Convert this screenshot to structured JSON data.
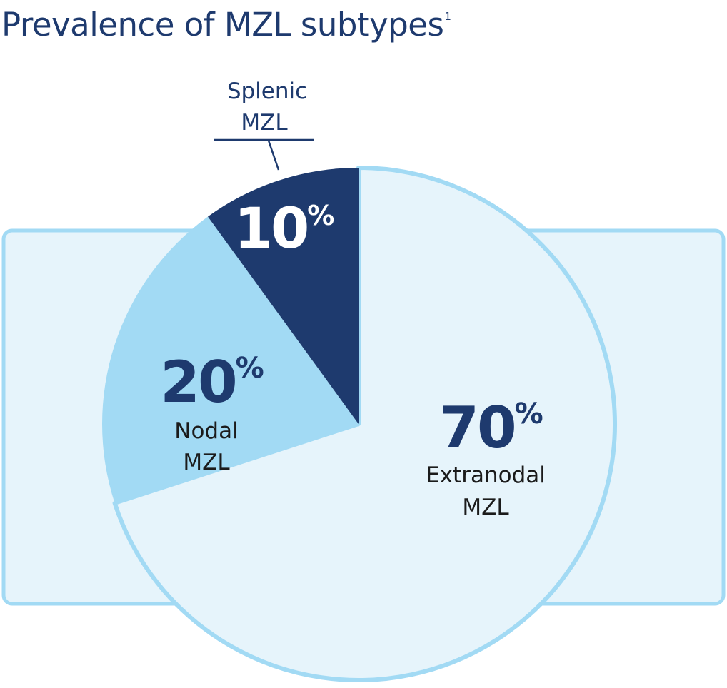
{
  "title": "Prevalence of MZL subtypes",
  "title_ref": "1",
  "colors": {
    "title": "#1e3a6e",
    "backdrop_fill": "#e6f4fb",
    "backdrop_stroke": "#a2daf4",
    "extranodal": "#e6f4fb",
    "nodal": "#a2daf4",
    "splenic": "#1e3a6e"
  },
  "chart_data": {
    "type": "pie",
    "title": "Prevalence of MZL subtypes",
    "slices": [
      {
        "id": "splenic",
        "value": 10,
        "value_label": "10",
        "unit": "%",
        "label_lines": [
          "Splenic",
          "MZL"
        ]
      },
      {
        "id": "nodal",
        "value": 20,
        "value_label": "20",
        "unit": "%",
        "label_lines": [
          "Nodal",
          "MZL"
        ]
      },
      {
        "id": "extranodal",
        "value": 70,
        "value_label": "70",
        "unit": "%",
        "label_lines": [
          "Extranodal",
          "MZL"
        ]
      }
    ]
  }
}
